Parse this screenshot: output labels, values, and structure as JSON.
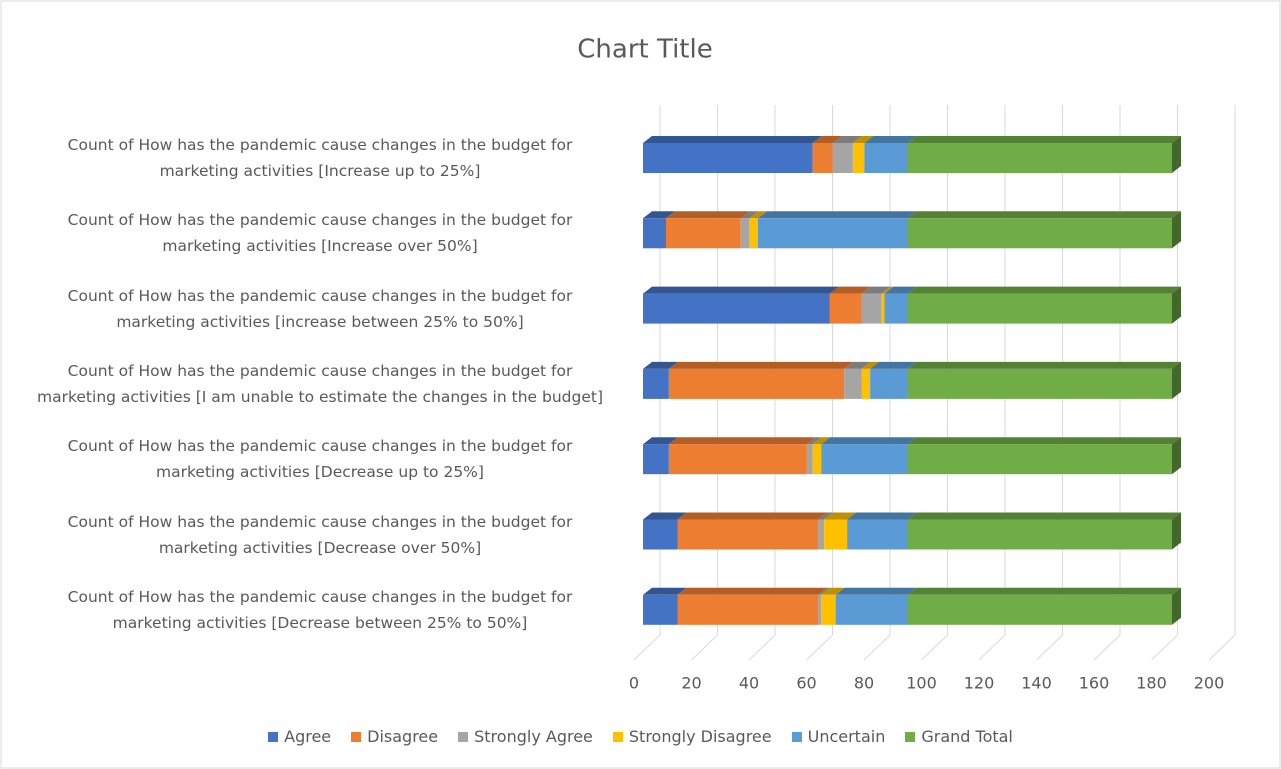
{
  "chart_data": {
    "type": "bar3d_stacked_horizontal",
    "title": "Chart Title",
    "categories": [
      "Count of How has the pandemic cause changes in the budget for\nmarketing activities [Increase up to 25%]",
      "Count of How has the pandemic cause changes in the budget for\nmarketing activities [Increase over 50%]",
      "Count of How has the pandemic cause changes in the budget for\nmarketing activities [increase between 25% to 50%]",
      "Count of How has the pandemic cause changes in the budget for\nmarketing activities [I am unable to estimate the changes in the budget]",
      "Count of How has the pandemic cause changes in the budget for\nmarketing activities [Decrease up to 25%]",
      "Count of How has the pandemic cause changes in the budget for\nmarketing activities [Decrease over 50%]",
      "Count of How has the pandemic cause changes in the budget for\nmarketing activities [Decrease between 25% to 50%]"
    ],
    "series": [
      {
        "name": "Agree",
        "color": "#4472c4",
        "values": [
          59,
          8,
          65,
          9,
          9,
          12,
          12
        ]
      },
      {
        "name": "Disagree",
        "color": "#ed7d31",
        "values": [
          7,
          26,
          11,
          61,
          48,
          49,
          49
        ]
      },
      {
        "name": "Strongly Agree",
        "color": "#a5a5a5",
        "values": [
          7,
          3,
          7,
          6,
          2,
          2,
          1
        ]
      },
      {
        "name": "Strongly Disagree",
        "color": "#ffc000",
        "values": [
          4,
          3,
          1,
          3,
          3,
          8,
          5
        ]
      },
      {
        "name": "Uncertain",
        "color": "#5b9bd5",
        "values": [
          15,
          52,
          8,
          13,
          30,
          21,
          25
        ]
      },
      {
        "name": "Grand Total",
        "color": "#70ad47",
        "values": [
          92,
          92,
          92,
          92,
          92,
          92,
          92
        ]
      }
    ],
    "xlim": [
      0,
      200
    ],
    "xticks": [
      0,
      20,
      40,
      60,
      80,
      100,
      120,
      140,
      160,
      180,
      200
    ],
    "grid": true,
    "legend": "bottom"
  }
}
